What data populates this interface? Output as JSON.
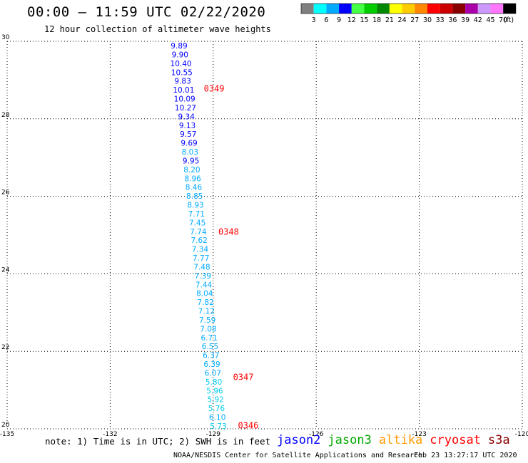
{
  "title": "00:00 – 11:59 UTC 02/22/2020",
  "subtitle": "12 hour collection of altimeter wave heights",
  "legend": {
    "swatches": [
      {
        "color": "#808080",
        "label": "3"
      },
      {
        "color": "#00ffff",
        "label": "6"
      },
      {
        "color": "#00aaff",
        "label": "9"
      },
      {
        "color": "#0000ff",
        "label": "12"
      },
      {
        "color": "#44ff44",
        "label": "15"
      },
      {
        "color": "#00cc00",
        "label": "18"
      },
      {
        "color": "#008800",
        "label": "21"
      },
      {
        "color": "#ffff00",
        "label": "24"
      },
      {
        "color": "#ffcc00",
        "label": "27"
      },
      {
        "color": "#ff8800",
        "label": "30"
      },
      {
        "color": "#ff0000",
        "label": "33"
      },
      {
        "color": "#cc0000",
        "label": "36"
      },
      {
        "color": "#880000",
        "label": "39"
      },
      {
        "color": "#aa00aa",
        "label": "42"
      },
      {
        "color": "#cc99ff",
        "label": "45"
      },
      {
        "color": "#ff77ff",
        "label": "70"
      },
      {
        "color": "#000000",
        "label": ""
      }
    ],
    "unit": "(ft)"
  },
  "map": {
    "lat_labels": [
      "30",
      "28",
      "26",
      "24",
      "22",
      "20"
    ],
    "lon_labels": [
      "-135",
      "-132",
      "-129",
      "-126",
      "-123",
      "-120"
    ],
    "time_labels": [
      {
        "text": "0349",
        "lat": 28.8
      },
      {
        "text": "0348",
        "lat": 25.1
      },
      {
        "text": "0347",
        "lat": 21.35
      },
      {
        "text": "0346",
        "lat": 20.1
      }
    ],
    "time_color": "#ff0000",
    "points": [
      {
        "v": "9.89",
        "c": "#0000ff"
      },
      {
        "v": "9.90",
        "c": "#0000ff"
      },
      {
        "v": "10.40",
        "c": "#0000ff"
      },
      {
        "v": "10.55",
        "c": "#0000ff"
      },
      {
        "v": "9.83",
        "c": "#0000ff"
      },
      {
        "v": "10.01",
        "c": "#0000ff"
      },
      {
        "v": "10.09",
        "c": "#0000ff"
      },
      {
        "v": "10.27",
        "c": "#0000ff"
      },
      {
        "v": "9.34",
        "c": "#0000ff"
      },
      {
        "v": "9.13",
        "c": "#0000ff"
      },
      {
        "v": "9.57",
        "c": "#0000ff"
      },
      {
        "v": "9.69",
        "c": "#0000ff"
      },
      {
        "v": "8.03",
        "c": "#00aaff"
      },
      {
        "v": "9.95",
        "c": "#0000ff"
      },
      {
        "v": "8.20",
        "c": "#00aaff"
      },
      {
        "v": "8.96",
        "c": "#00aaff"
      },
      {
        "v": "8.46",
        "c": "#00aaff"
      },
      {
        "v": "8.85",
        "c": "#00aaff"
      },
      {
        "v": "8.93",
        "c": "#00aaff"
      },
      {
        "v": "7.71",
        "c": "#00aaff"
      },
      {
        "v": "7.45",
        "c": "#00aaff"
      },
      {
        "v": "7.74",
        "c": "#00aaff"
      },
      {
        "v": "7.62",
        "c": "#00aaff"
      },
      {
        "v": "7.34",
        "c": "#00aaff"
      },
      {
        "v": "7.77",
        "c": "#00aaff"
      },
      {
        "v": "7.48",
        "c": "#00aaff"
      },
      {
        "v": "7.39",
        "c": "#00aaff"
      },
      {
        "v": "7.44",
        "c": "#00aaff"
      },
      {
        "v": "8.04",
        "c": "#00aaff"
      },
      {
        "v": "7.82",
        "c": "#00aaff"
      },
      {
        "v": "7.12",
        "c": "#00aaff"
      },
      {
        "v": "7.59",
        "c": "#00aaff"
      },
      {
        "v": "7.08",
        "c": "#00aaff"
      },
      {
        "v": "6.71",
        "c": "#00aaff"
      },
      {
        "v": "6.55",
        "c": "#00aaff"
      },
      {
        "v": "6.37",
        "c": "#00aaff"
      },
      {
        "v": "6.39",
        "c": "#00aaff"
      },
      {
        "v": "6.07",
        "c": "#00aaff"
      },
      {
        "v": "5.80",
        "c": "#00ccee"
      },
      {
        "v": "5.96",
        "c": "#00ccee"
      },
      {
        "v": "5.92",
        "c": "#00ccee"
      },
      {
        "v": "5.76",
        "c": "#00ccee"
      },
      {
        "v": "6.10",
        "c": "#00aaff"
      },
      {
        "v": "5.73",
        "c": "#00ccee"
      }
    ]
  },
  "note": "note: 1) Time is in UTC; 2) SWH is in feet",
  "satellites": [
    {
      "name": "jason2",
      "color": "#0000ff"
    },
    {
      "name": "jason3",
      "color": "#00aa00"
    },
    {
      "name": "altika",
      "color": "#ff9900"
    },
    {
      "name": "cryosat",
      "color": "#ff0000"
    },
    {
      "name": "s3a",
      "color": "#880000"
    }
  ],
  "footer": "NOAA/NESDIS Center for Satellite Applications and Research",
  "stamp": "Feb 23 13:27:17 UTC 2020"
}
